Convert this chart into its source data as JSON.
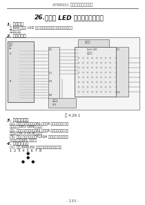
{
  "page_title": "AT89S51 单片机套件及套购模组",
  "chapter_num": "26.",
  "chapter_title": "点阵式 LED 简单图形显示技术",
  "section1_title": "1. 实验任务",
  "section1_line1": "在 8X8 点阵式 LED 显示心、黑等心形图，通过按键来改变显示",
  "section1_line2": "不同的图形。",
  "section2_title": "2. 电路原理图",
  "fig_label": "图 4.26.1",
  "section3_title": "3. 硬件系统连接",
  "section3_item1a": "(1). 把单片机套板区域中的P0 端口的8 芯排志连接到点阵模",
  "section3_item1b": "块区域中的DB1-DB8端口上；",
  "section3_item2a": "(2). 把单片机套板区域中的P2 端口的8 芯排志连接到点阵模",
  "section3_item2b": "块区域中的DC1-DC8端口上；",
  "section3_item3a": "(3). 把单片机套板区域中的FLASH 烧子用到连接到独立式",
  "section3_item3b": "键盘区域中的SP1 端子上。",
  "section4_title": "4. 程序设计内容",
  "section4_text": "(1). 点在 8X8LED 点阵上显示字型数组下图所示",
  "dot_row_label": "1  2  3  4  5  6  7  8",
  "dots": [
    [
      4
    ],
    [
      4
    ],
    [
      3,
      5
    ]
  ],
  "page_num": "- 133 -",
  "bg_color": "#ffffff",
  "text_color": "#1a1a1a",
  "gray_text": "#555555",
  "title_color": "#000000",
  "line_color": "#333333"
}
